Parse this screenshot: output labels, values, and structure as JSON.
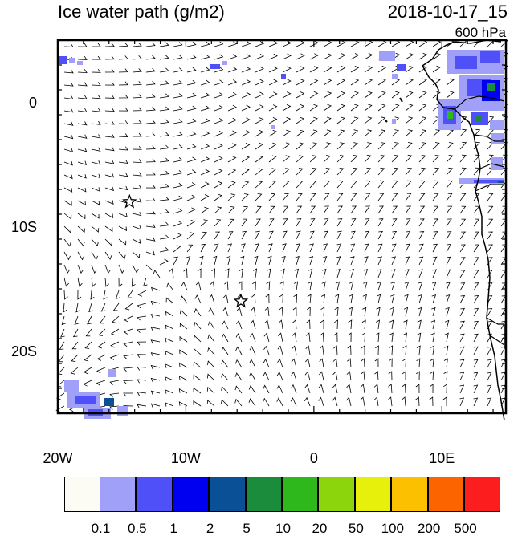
{
  "header": {
    "title": "Ice water path (g/m2)",
    "datetime": "2018-10-17_15",
    "level": "600 hPa"
  },
  "map": {
    "lon_range": [
      -20,
      15
    ],
    "lat_range": [
      -25,
      5
    ],
    "x_ticks": [
      {
        "lon": -20,
        "label": "20W"
      },
      {
        "lon": -10,
        "label": "10W"
      },
      {
        "lon": 0,
        "label": "0"
      },
      {
        "lon": 10,
        "label": "10E"
      }
    ],
    "y_ticks": [
      {
        "lat": 0,
        "label": "0"
      },
      {
        "lat": -10,
        "label": "10S"
      },
      {
        "lat": -20,
        "label": "20S"
      }
    ],
    "markers": [
      {
        "name": "star-marker-1",
        "lon": -14.4,
        "lat": -8.0
      },
      {
        "name": "star-marker-2",
        "lon": -5.7,
        "lat": -16.0
      }
    ]
  },
  "colorbar": {
    "labels": [
      "0.1",
      "0.5",
      "1",
      "2",
      "5",
      "10",
      "20",
      "50",
      "100",
      "200",
      "500"
    ],
    "colors": [
      "#fcfcf4",
      "#a0a0f8",
      "#5050f8",
      "#0000f0",
      "#0a5096",
      "#1a8c3c",
      "#2eb81c",
      "#8cd40c",
      "#e6f00a",
      "#fcc000",
      "#fc6400",
      "#fc1e1e"
    ]
  }
}
